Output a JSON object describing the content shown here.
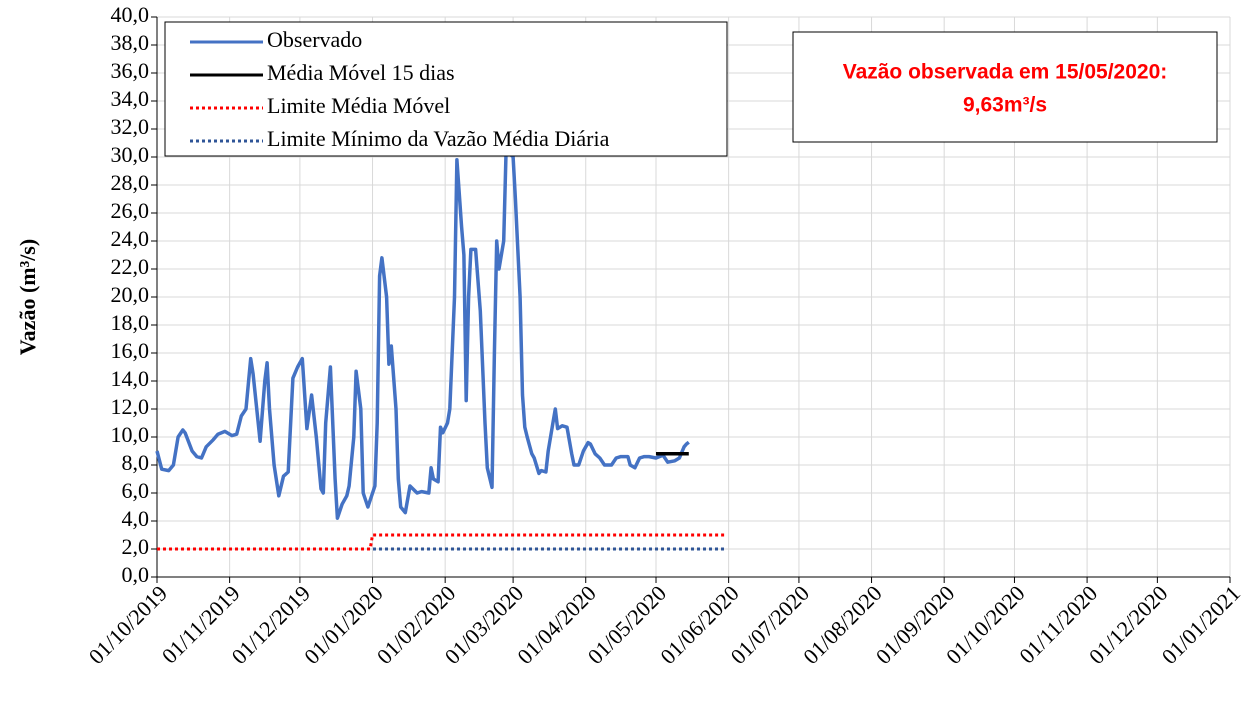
{
  "chart_data": {
    "type": "line",
    "y_label": "Vazão (m³/s)",
    "annotation": [
      "Vazão observada em 15/05/2020:",
      "9,63m³/s"
    ],
    "annotation_color": "#ff0000",
    "legend": "upper left",
    "grid": true,
    "xlim": [
      "01/10/2019",
      "01/01/2021"
    ],
    "xticks": [
      "01/10/2019",
      "01/11/2019",
      "01/12/2019",
      "01/01/2020",
      "01/02/2020",
      "01/03/2020",
      "01/04/2020",
      "01/05/2020",
      "01/06/2020",
      "01/07/2020",
      "01/08/2020",
      "01/09/2020",
      "01/10/2020",
      "01/11/2020",
      "01/12/2020",
      "01/01/2021"
    ],
    "ylim": [
      0,
      40
    ],
    "yticks": [
      {
        "value": 0,
        "label": "0,0"
      },
      {
        "value": 2,
        "label": "2,0"
      },
      {
        "value": 4,
        "label": "4,0"
      },
      {
        "value": 6,
        "label": "6,0"
      },
      {
        "value": 8,
        "label": "8,0"
      },
      {
        "value": 10,
        "label": "10,0"
      },
      {
        "value": 12,
        "label": "12,0"
      },
      {
        "value": 14,
        "label": "14,0"
      },
      {
        "value": 16,
        "label": "16,0"
      },
      {
        "value": 18,
        "label": "18,0"
      },
      {
        "value": 20,
        "label": "20,0"
      },
      {
        "value": 22,
        "label": "22,0"
      },
      {
        "value": 24,
        "label": "24,0"
      },
      {
        "value": 26,
        "label": "26,0"
      },
      {
        "value": 28,
        "label": "28,0"
      },
      {
        "value": 30,
        "label": "30,0"
      },
      {
        "value": 32,
        "label": "32,0"
      },
      {
        "value": 34,
        "label": "34,0"
      },
      {
        "value": 36,
        "label": "36,0"
      },
      {
        "value": 38,
        "label": "38,0"
      },
      {
        "value": 40,
        "label": "40,0"
      }
    ],
    "series": [
      {
        "name": "Observado",
        "color": "#4472c4",
        "linestyle": "solid",
        "x": [
          "01/10/2019",
          "03/10/2019",
          "06/10/2019",
          "08/10/2019",
          "10/10/2019",
          "12/10/2019",
          "13/10/2019",
          "16/10/2019",
          "18/10/2019",
          "20/10/2019",
          "22/10/2019",
          "25/10/2019",
          "27/10/2019",
          "30/10/2019",
          "02/11/2019",
          "04/11/2019",
          "06/11/2019",
          "08/11/2019",
          "10/11/2019",
          "11/11/2019",
          "14/11/2019",
          "16/11/2019",
          "17/11/2019",
          "18/11/2019",
          "20/11/2019",
          "22/11/2019",
          "24/11/2019",
          "26/11/2019",
          "28/11/2019",
          "30/11/2019",
          "02/12/2019",
          "04/12/2019",
          "06/12/2019",
          "08/12/2019",
          "10/12/2019",
          "11/12/2019",
          "12/12/2019",
          "14/12/2019",
          "16/12/2019",
          "17/12/2019",
          "19/12/2019",
          "21/12/2019",
          "22/12/2019",
          "24/12/2019",
          "25/12/2019",
          "27/12/2019",
          "28/12/2019",
          "30/12/2019",
          "02/01/2020",
          "03/01/2020",
          "04/01/2020",
          "05/01/2020",
          "07/01/2020",
          "08/01/2020",
          "09/01/2020",
          "11/01/2020",
          "12/01/2020",
          "13/01/2020",
          "15/01/2020",
          "17/01/2020",
          "20/01/2020",
          "22/01/2020",
          "25/01/2020",
          "26/01/2020",
          "27/01/2020",
          "29/01/2020",
          "30/01/2020",
          "31/01/2020",
          "02/02/2020",
          "03/02/2020",
          "05/02/2020",
          "06/02/2020",
          "08/02/2020",
          "09/02/2020",
          "10/02/2020",
          "11/02/2020",
          "12/02/2020",
          "14/02/2020",
          "16/02/2020",
          "18/02/2020",
          "19/02/2020",
          "21/02/2020",
          "22/02/2020",
          "23/02/2020",
          "24/02/2020",
          "26/02/2020",
          "27/02/2020",
          "01/03/2020",
          "02/03/2020",
          "04/03/2020",
          "05/03/2020",
          "06/03/2020",
          "07/03/2020",
          "09/03/2020",
          "10/03/2020",
          "12/03/2020",
          "13/03/2020",
          "15/03/2020",
          "16/03/2020",
          "18/03/2020",
          "19/03/2020",
          "20/03/2020",
          "22/03/2020",
          "24/03/2020",
          "26/03/2020",
          "27/03/2020",
          "29/03/2020",
          "31/03/2020",
          "02/04/2020",
          "03/04/2020",
          "05/04/2020",
          "07/04/2020",
          "09/04/2020",
          "12/04/2020",
          "14/04/2020",
          "16/04/2020",
          "19/04/2020",
          "20/04/2020",
          "22/04/2020",
          "24/04/2020",
          "26/04/2020",
          "28/04/2020",
          "01/05/2020",
          "04/05/2020",
          "06/05/2020",
          "09/05/2020",
          "11/05/2020",
          "13/05/2020",
          "14/05/2020",
          "15/05/2020"
        ],
        "values": [
          9.0,
          7.7,
          7.6,
          8.0,
          10.0,
          10.5,
          10.3,
          9.0,
          8.6,
          8.5,
          9.3,
          9.8,
          10.2,
          10.4,
          10.1,
          10.2,
          11.5,
          12.0,
          15.6,
          14.5,
          9.7,
          14.0,
          15.3,
          12.0,
          8.0,
          5.8,
          7.2,
          7.5,
          14.2,
          15.0,
          15.6,
          10.6,
          13.0,
          10.0,
          6.3,
          6.0,
          11.0,
          15.0,
          7.0,
          4.2,
          5.2,
          5.8,
          6.5,
          10.0,
          14.7,
          12.0,
          6.0,
          5.0,
          6.5,
          11.0,
          21.5,
          22.8,
          20.0,
          15.2,
          16.5,
          12.0,
          7.0,
          5.0,
          4.6,
          6.5,
          6.0,
          6.1,
          6.0,
          7.8,
          7.0,
          6.8,
          10.7,
          10.3,
          11.0,
          12.0,
          20.0,
          29.8,
          25.0,
          23.0,
          12.6,
          20.0,
          23.4,
          23.4,
          19.0,
          11.0,
          7.8,
          6.4,
          16.0,
          24.0,
          22.0,
          24.0,
          30.5,
          30.0,
          27.0,
          20.0,
          13.0,
          10.7,
          10.0,
          8.8,
          8.5,
          7.4,
          7.6,
          7.5,
          9.0,
          11.0,
          12.0,
          10.6,
          10.8,
          10.7,
          8.8,
          8.0,
          8.0,
          9.0,
          9.6,
          9.5,
          8.8,
          8.5,
          8.0,
          8.0,
          8.5,
          8.6,
          8.6,
          8.0,
          7.8,
          8.5,
          8.6,
          8.6,
          8.5,
          8.7,
          8.2,
          8.3,
          8.5,
          9.3,
          9.5,
          9.63
        ]
      },
      {
        "name": "Média Móvel 15 dias",
        "color": "#000000",
        "linestyle": "solid",
        "x": [
          "01/05/2020",
          "15/05/2020"
        ],
        "values": [
          8.8,
          8.8
        ]
      },
      {
        "name": "Limite Média Móvel",
        "color": "#ff0000",
        "linestyle": "dotted",
        "x": [
          "01/10/2019",
          "31/12/2019",
          "01/01/2020",
          "31/05/2020"
        ],
        "values": [
          2.0,
          2.0,
          3.0,
          3.0
        ]
      },
      {
        "name": "Limite Mínimo da Vazão Média Diária",
        "color": "#2f5597",
        "linestyle": "dotted",
        "x": [
          "01/10/2019",
          "31/05/2020"
        ],
        "values": [
          2.0,
          2.0
        ]
      }
    ]
  }
}
